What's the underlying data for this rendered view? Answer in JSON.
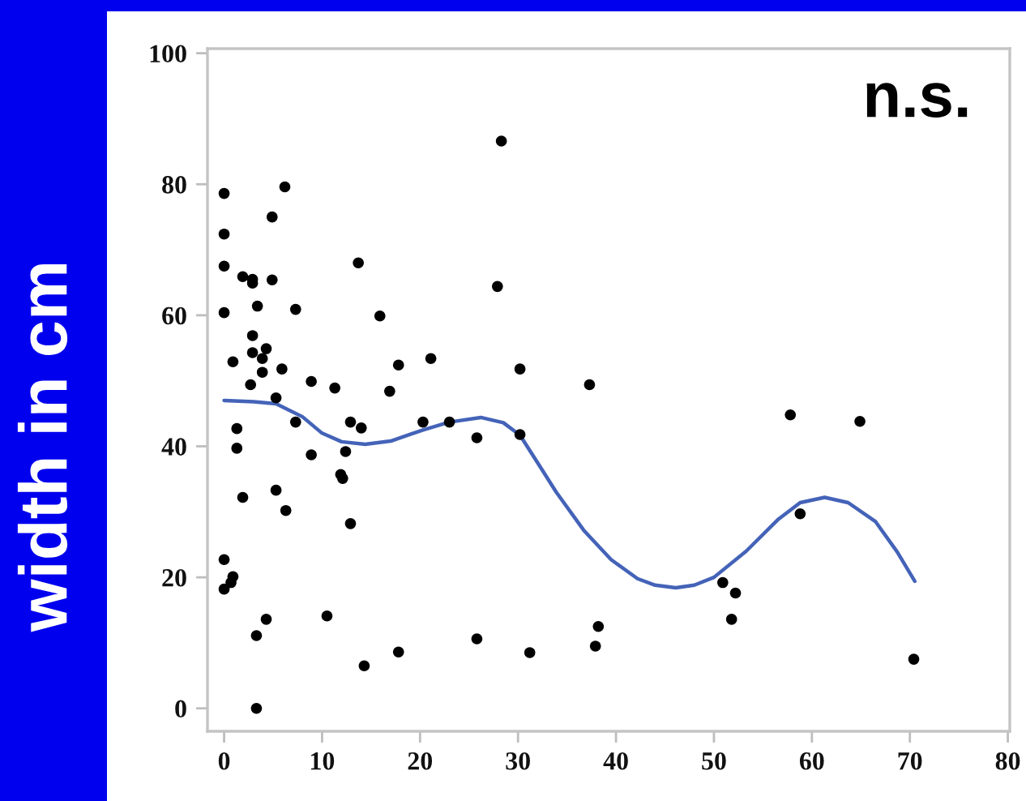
{
  "chart_data": {
    "type": "scatter",
    "ylabel": "width in cm",
    "annotations": [
      "n.s."
    ],
    "series": [
      {
        "marker": "circle",
        "color": "#000000",
        "x": [
          0,
          0,
          0,
          0,
          0,
          0,
          0.9,
          0.7,
          0.9,
          1.3,
          1.3,
          1.9,
          1.9,
          2.7,
          2.9,
          2.9,
          2.9,
          2.9,
          3.3,
          3.3,
          3.4,
          3.9,
          3.9,
          4.3,
          4.3,
          4.9,
          4.9,
          5.3,
          5.3,
          5.9,
          6.2,
          6.3,
          7.3,
          7.3,
          8.9,
          8.9,
          10.5,
          11.3,
          11.9,
          12.1,
          12.4,
          12.9,
          12.9,
          13.7,
          14.0,
          14.3,
          15.9,
          16.9,
          17.8,
          17.8,
          20.3,
          21.1,
          23.0,
          25.8,
          25.8,
          27.9,
          28.3,
          30.2,
          30.2,
          31.2,
          37.3,
          37.9,
          38.2,
          50.9,
          51.8,
          52.2,
          57.8,
          58.8,
          64.9,
          70.4
        ],
        "values": [
          78.6,
          72.4,
          67.5,
          60.4,
          22.7,
          18.2,
          20.1,
          19.2,
          52.9,
          42.7,
          39.7,
          65.9,
          32.2,
          49.4,
          65.5,
          64.9,
          56.9,
          54.3,
          11.1,
          0.0,
          61.4,
          53.4,
          51.3,
          54.9,
          13.6,
          75.0,
          65.4,
          47.4,
          33.3,
          51.8,
          79.6,
          30.2,
          60.9,
          43.7,
          49.9,
          38.7,
          14.1,
          48.9,
          35.7,
          35.1,
          39.2,
          43.7,
          28.2,
          68.0,
          42.8,
          6.5,
          59.9,
          48.4,
          52.4,
          8.6,
          43.7,
          53.4,
          43.7,
          41.3,
          10.6,
          64.4,
          86.6,
          51.8,
          41.8,
          8.5,
          49.4,
          9.5,
          12.5,
          19.2,
          13.6,
          17.6,
          44.8,
          29.7,
          43.8,
          7.5
        ]
      },
      {
        "type": "line",
        "color": "#4463b8",
        "line_style": "solid",
        "x": [
          0,
          3,
          5.3,
          8,
          10,
          12,
          14.4,
          17,
          20.3,
          23,
          26.2,
          28.5,
          30.2,
          32,
          33.9,
          36.7,
          39.5,
          42.2,
          44,
          46.1,
          48,
          50,
          53.3,
          56.6,
          58.8,
          61.3,
          63.7,
          66.5,
          68.7,
          70.5
        ],
        "values": [
          47.0,
          46.8,
          46.5,
          44.5,
          42.0,
          40.7,
          40.3,
          40.8,
          42.5,
          43.7,
          44.4,
          43.6,
          41.7,
          37.5,
          33.0,
          27.2,
          22.7,
          19.8,
          18.8,
          18.4,
          18.8,
          20.0,
          24.0,
          28.9,
          31.4,
          32.2,
          31.4,
          28.5,
          23.9,
          19.4
        ]
      }
    ],
    "xlim": [
      -1.7,
      80.2
    ],
    "ylim": [
      -3.5,
      100.7
    ],
    "xticks": [
      0,
      10,
      20,
      30,
      40,
      50,
      60,
      70,
      80
    ],
    "yticks": [
      0,
      20,
      40,
      60,
      80,
      100
    ]
  }
}
